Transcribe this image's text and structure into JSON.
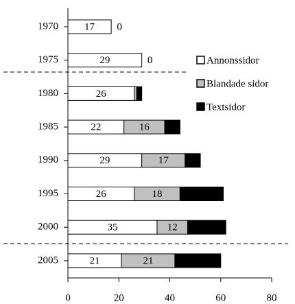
{
  "chart_data": {
    "type": "stacked-barh",
    "categories": [
      "1970",
      "1975",
      "1980",
      "1985",
      "1990",
      "1995",
      "2000",
      "2005"
    ],
    "series": [
      {
        "name": "Annonssidor",
        "color": "#ffffff",
        "values": [
          17,
          29,
          26,
          22,
          29,
          26,
          35,
          21
        ],
        "value_labels": [
          "17",
          "29",
          "26",
          "22",
          "29",
          "26",
          "35",
          "21"
        ]
      },
      {
        "name": "Blandade sidor",
        "color": "#c0c0c0",
        "values": [
          0,
          0,
          1,
          16,
          17,
          18,
          12,
          21
        ],
        "value_labels": [
          "0",
          "0",
          null,
          "16",
          "17",
          "18",
          "12",
          "21"
        ]
      },
      {
        "name": "Textsidor",
        "color": "#000000",
        "values": [
          0,
          0,
          2,
          6,
          6,
          17,
          15,
          18
        ],
        "value_labels": [
          null,
          null,
          null,
          "6",
          "6",
          "17",
          "15",
          "18"
        ]
      }
    ],
    "xlim": [
      0,
      80
    ],
    "xticks": [
      0,
      20,
      40,
      60,
      80
    ],
    "legend": "right"
  }
}
